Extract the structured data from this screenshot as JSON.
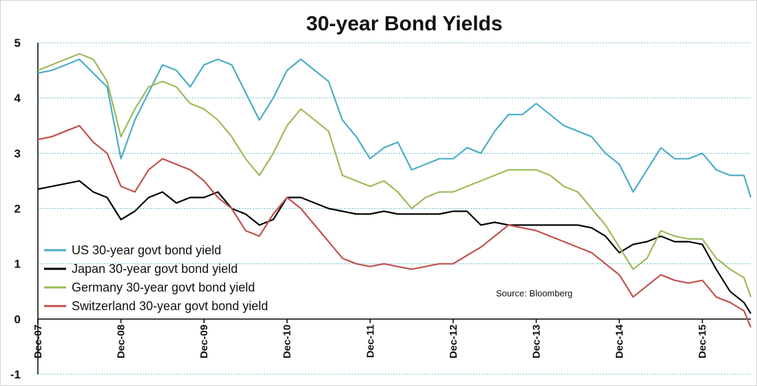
{
  "chart_data": {
    "type": "line",
    "title": "30-year Bond Yields",
    "source": "Source:  Bloomberg",
    "xlabel": "",
    "ylabel": "",
    "ylim": [
      -1,
      5
    ],
    "yticks": [
      "-1",
      "0",
      "1",
      "2",
      "3",
      "4",
      "5"
    ],
    "xlim": [
      "2007-12",
      "2016-07"
    ],
    "xticks": [
      "Dec-07",
      "Dec-08",
      "Dec-09",
      "Dec-10",
      "Dec-11",
      "Dec-12",
      "Dec-13",
      "Dec-14",
      "Dec-15"
    ],
    "grid": true,
    "legend_position": "bottom-left",
    "x": [
      "2007-12",
      "2008-02",
      "2008-04",
      "2008-06",
      "2008-08",
      "2008-10",
      "2008-12",
      "2009-02",
      "2009-04",
      "2009-06",
      "2009-08",
      "2009-10",
      "2009-12",
      "2010-02",
      "2010-04",
      "2010-06",
      "2010-08",
      "2010-10",
      "2010-12",
      "2011-02",
      "2011-04",
      "2011-06",
      "2011-08",
      "2011-10",
      "2011-12",
      "2012-02",
      "2012-04",
      "2012-06",
      "2012-08",
      "2012-10",
      "2012-12",
      "2013-02",
      "2013-04",
      "2013-06",
      "2013-08",
      "2013-10",
      "2013-12",
      "2014-02",
      "2014-04",
      "2014-06",
      "2014-08",
      "2014-10",
      "2014-12",
      "2015-02",
      "2015-04",
      "2015-06",
      "2015-08",
      "2015-10",
      "2015-12",
      "2016-02",
      "2016-04",
      "2016-06",
      "2016-07"
    ],
    "series": [
      {
        "name": "US 30-year govt bond yield",
        "color": "#4bacc6",
        "values": [
          4.45,
          4.5,
          4.6,
          4.7,
          4.45,
          4.2,
          2.9,
          3.6,
          4.1,
          4.6,
          4.5,
          4.2,
          4.6,
          4.7,
          4.6,
          4.1,
          3.6,
          4.0,
          4.5,
          4.7,
          4.5,
          4.3,
          3.6,
          3.3,
          2.9,
          3.1,
          3.2,
          2.7,
          2.8,
          2.9,
          2.9,
          3.1,
          3.0,
          3.4,
          3.7,
          3.7,
          3.9,
          3.7,
          3.5,
          3.4,
          3.3,
          3.0,
          2.8,
          2.3,
          2.7,
          3.1,
          2.9,
          2.9,
          3.0,
          2.7,
          2.6,
          2.6,
          2.2
        ]
      },
      {
        "name": "Japan 30-year govt bond yield",
        "color": "#000000",
        "values": [
          2.35,
          2.4,
          2.45,
          2.5,
          2.3,
          2.2,
          1.8,
          1.95,
          2.2,
          2.3,
          2.1,
          2.2,
          2.2,
          2.3,
          2.0,
          1.9,
          1.7,
          1.8,
          2.2,
          2.2,
          2.1,
          2.0,
          1.95,
          1.9,
          1.9,
          1.95,
          1.9,
          1.9,
          1.9,
          1.9,
          1.95,
          1.95,
          1.7,
          1.75,
          1.7,
          1.7,
          1.7,
          1.7,
          1.7,
          1.7,
          1.65,
          1.5,
          1.2,
          1.35,
          1.4,
          1.5,
          1.4,
          1.4,
          1.35,
          0.9,
          0.5,
          0.3,
          0.1
        ]
      },
      {
        "name": "Germany 30-year govt bond yield",
        "color": "#9bbb59",
        "values": [
          4.5,
          4.6,
          4.7,
          4.8,
          4.7,
          4.3,
          3.3,
          3.8,
          4.2,
          4.3,
          4.2,
          3.9,
          3.8,
          3.6,
          3.3,
          2.9,
          2.6,
          3.0,
          3.5,
          3.8,
          3.6,
          3.4,
          2.6,
          2.5,
          2.4,
          2.5,
          2.3,
          2.0,
          2.2,
          2.3,
          2.3,
          2.4,
          2.5,
          2.6,
          2.7,
          2.7,
          2.7,
          2.6,
          2.4,
          2.3,
          2.0,
          1.7,
          1.3,
          0.9,
          1.1,
          1.6,
          1.5,
          1.45,
          1.45,
          1.1,
          0.9,
          0.75,
          0.4
        ]
      },
      {
        "name": "Switzerland 30-year govt bond yield",
        "color": "#c0504d",
        "values": [
          3.25,
          3.3,
          3.4,
          3.5,
          3.2,
          3.0,
          2.4,
          2.3,
          2.7,
          2.9,
          2.8,
          2.7,
          2.5,
          2.2,
          2.0,
          1.6,
          1.5,
          1.9,
          2.2,
          2.0,
          1.7,
          1.4,
          1.1,
          1.0,
          0.95,
          1.0,
          0.95,
          0.9,
          0.95,
          1.0,
          1.0,
          1.15,
          1.3,
          1.5,
          1.7,
          1.65,
          1.6,
          1.5,
          1.4,
          1.3,
          1.2,
          1.0,
          0.8,
          0.4,
          0.6,
          0.8,
          0.7,
          0.65,
          0.7,
          0.4,
          0.3,
          0.15,
          -0.15
        ]
      }
    ]
  }
}
